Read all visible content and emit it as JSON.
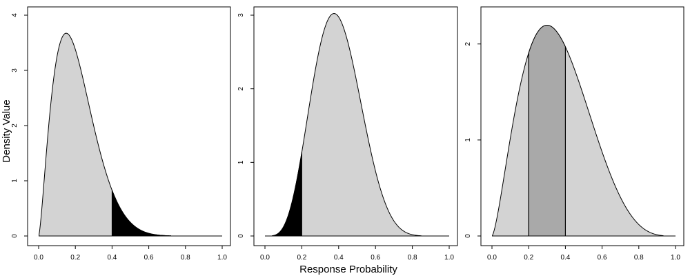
{
  "chart_data": [
    {
      "type": "area",
      "distribution": {
        "family": "beta",
        "alpha": 2.5,
        "beta": 9.5
      },
      "xlim": [
        0,
        1
      ],
      "ylim": [
        0,
        4
      ],
      "xticks": [
        "0.0",
        "0.2",
        "0.4",
        "0.6",
        "0.8",
        "1.0"
      ],
      "yticks": [
        "0",
        "1",
        "2",
        "3",
        "4"
      ],
      "x": [
        0.0,
        0.05,
        0.1,
        0.15,
        0.2,
        0.25,
        0.3,
        0.35,
        0.4,
        0.45,
        0.5,
        0.55,
        0.6,
        0.65
      ],
      "y": [
        0.0,
        1.6,
        3.4,
        4.0,
        3.7,
        2.9,
        2.0,
        1.2,
        0.68,
        0.34,
        0.15,
        0.06,
        0.02,
        0.0
      ],
      "shaded_regions": [
        {
          "from": 0.4,
          "to": 1.0,
          "fill": "#000000"
        }
      ],
      "curve_fill": "#d3d3d3"
    },
    {
      "type": "area",
      "distribution": {
        "family": "beta",
        "alpha": 5.5,
        "beta": 8.5
      },
      "xlim": [
        0,
        1
      ],
      "ylim": [
        0,
        3
      ],
      "xticks": [
        "0.0",
        "0.2",
        "0.4",
        "0.6",
        "0.8",
        "1.0"
      ],
      "yticks": [
        "0",
        "1",
        "2",
        "3"
      ],
      "x": [
        0.05,
        0.1,
        0.15,
        0.2,
        0.25,
        0.3,
        0.35,
        0.4,
        0.45,
        0.5,
        0.55,
        0.6,
        0.65,
        0.7,
        0.75,
        0.8
      ],
      "y": [
        0.05,
        0.3,
        0.7,
        1.05,
        1.8,
        2.5,
        2.9,
        3.0,
        2.85,
        2.4,
        1.8,
        1.15,
        0.6,
        0.25,
        0.08,
        0.01
      ],
      "shaded_regions": [
        {
          "from": 0.0,
          "to": 0.2,
          "fill": "#000000"
        }
      ],
      "curve_fill": "#d3d3d3"
    },
    {
      "type": "area",
      "distribution": {
        "family": "beta",
        "alpha": 2.5,
        "beta": 4.5
      },
      "xlim": [
        0,
        1
      ],
      "ylim": [
        0,
        2.3
      ],
      "xticks": [
        "0.0",
        "0.2",
        "0.4",
        "0.6",
        "0.8",
        "1.0"
      ],
      "yticks": [
        "0",
        "1",
        "2"
      ],
      "x": [
        0.0,
        0.05,
        0.1,
        0.15,
        0.2,
        0.25,
        0.3,
        0.35,
        0.4,
        0.45,
        0.5,
        0.55,
        0.6,
        0.65,
        0.7,
        0.75,
        0.8
      ],
      "y": [
        0.0,
        0.9,
        1.65,
        2.1,
        2.32,
        2.3,
        2.2,
        2.05,
        1.8,
        1.45,
        1.08,
        0.75,
        0.47,
        0.26,
        0.12,
        0.04,
        0.0
      ],
      "shaded_regions": [
        {
          "from": 0.2,
          "to": 0.4,
          "fill": "#a9a9a9"
        }
      ],
      "boundary_lines": [
        0.2,
        0.4
      ],
      "curve_fill": "#d3d3d3"
    }
  ],
  "labels": {
    "ylabel": "Density Value",
    "xlabel": "Response Probability"
  }
}
